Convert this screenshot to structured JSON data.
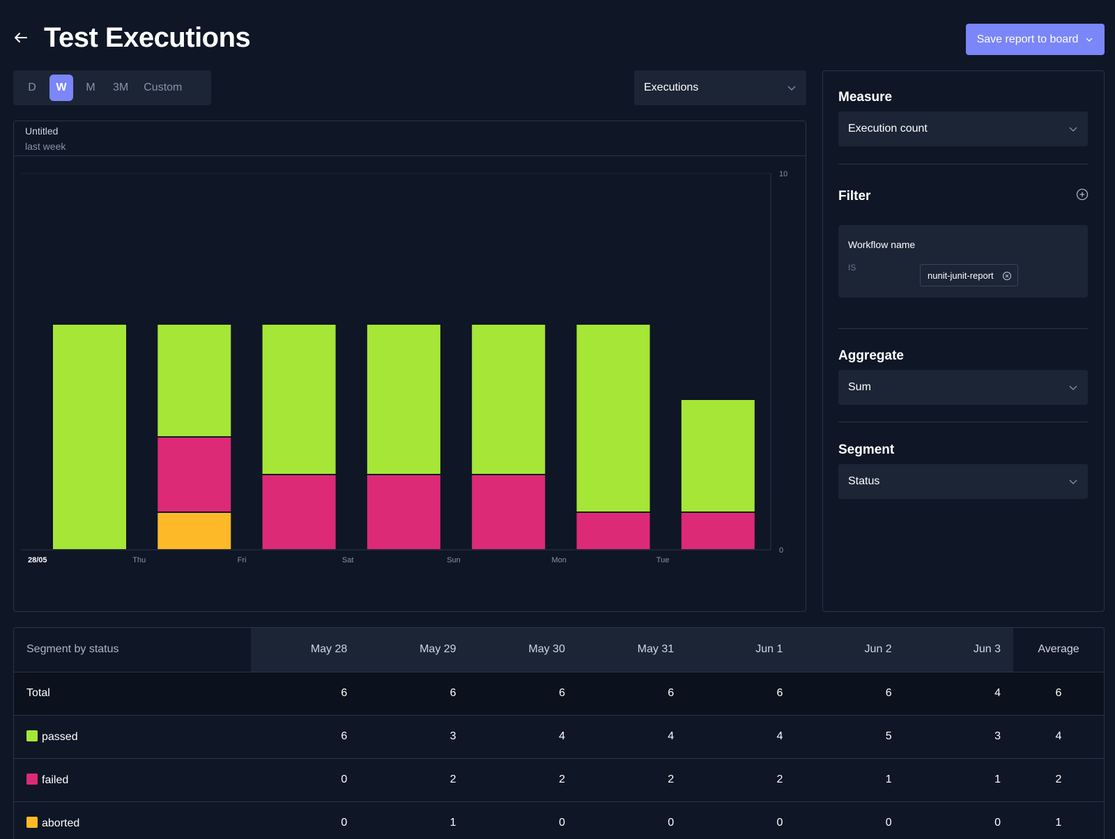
{
  "header": {
    "title": "Test Executions",
    "save_label": "Save report to board"
  },
  "toolbar": {
    "ranges": [
      {
        "label": "D",
        "active": false
      },
      {
        "label": "W",
        "active": true
      },
      {
        "label": "M",
        "active": false
      },
      {
        "label": "3M",
        "active": false
      },
      {
        "label": "Custom",
        "active": false
      }
    ],
    "metric_select": "Executions"
  },
  "chart": {
    "title": "Untitled",
    "subtitle": "last week"
  },
  "chart_data": {
    "type": "bar",
    "stacked": true,
    "categories": [
      "28/05",
      "Thu",
      "Fri",
      "Sat",
      "Sun",
      "Mon",
      "Tue"
    ],
    "series": [
      {
        "name": "aborted",
        "color": "#fdb927",
        "values": [
          0,
          1,
          0,
          0,
          0,
          0,
          0
        ]
      },
      {
        "name": "failed",
        "color": "#dd2a76",
        "values": [
          0,
          2,
          2,
          2,
          2,
          1,
          1
        ]
      },
      {
        "name": "passed",
        "color": "#a5e637",
        "values": [
          6,
          3,
          4,
          4,
          4,
          5,
          3
        ]
      }
    ],
    "ylim": [
      0,
      10
    ],
    "yticks": [
      0,
      10
    ],
    "y_axis_position": "right",
    "title": "Untitled",
    "subtitle": "last week"
  },
  "sidebar": {
    "measure": {
      "heading": "Measure",
      "value": "Execution count"
    },
    "filter": {
      "heading": "Filter",
      "field": "Workflow name",
      "operator": "IS",
      "value": "nunit-junit-report"
    },
    "aggregate": {
      "heading": "Aggregate",
      "value": "Sum"
    },
    "segment": {
      "heading": "Segment",
      "value": "Status"
    }
  },
  "table": {
    "segment_label": "Segment by status",
    "columns": [
      "May 28",
      "May 29",
      "May 30",
      "May 31",
      "Jun 1",
      "Jun 2",
      "Jun 3"
    ],
    "average_label": "Average",
    "rows": [
      {
        "label": "Total",
        "values": [
          "6",
          "6",
          "6",
          "6",
          "6",
          "6",
          "4"
        ],
        "average": "6"
      },
      {
        "label": "passed",
        "color": "#a5e637",
        "values": [
          "6",
          "3",
          "4",
          "4",
          "4",
          "5",
          "3"
        ],
        "average": "4"
      },
      {
        "label": "failed",
        "color": "#dd2a76",
        "values": [
          "0",
          "2",
          "2",
          "2",
          "2",
          "1",
          "1"
        ],
        "average": "2"
      },
      {
        "label": "aborted",
        "color": "#fdb927",
        "values": [
          "0",
          "1",
          "0",
          "0",
          "0",
          "0",
          "0"
        ],
        "average": "1"
      }
    ]
  },
  "colors": {
    "accent": "#7b86f8",
    "background": "#0f1626",
    "panel": "#1b2536",
    "passed": "#a5e637",
    "failed": "#dd2a76",
    "aborted": "#fdb927"
  }
}
